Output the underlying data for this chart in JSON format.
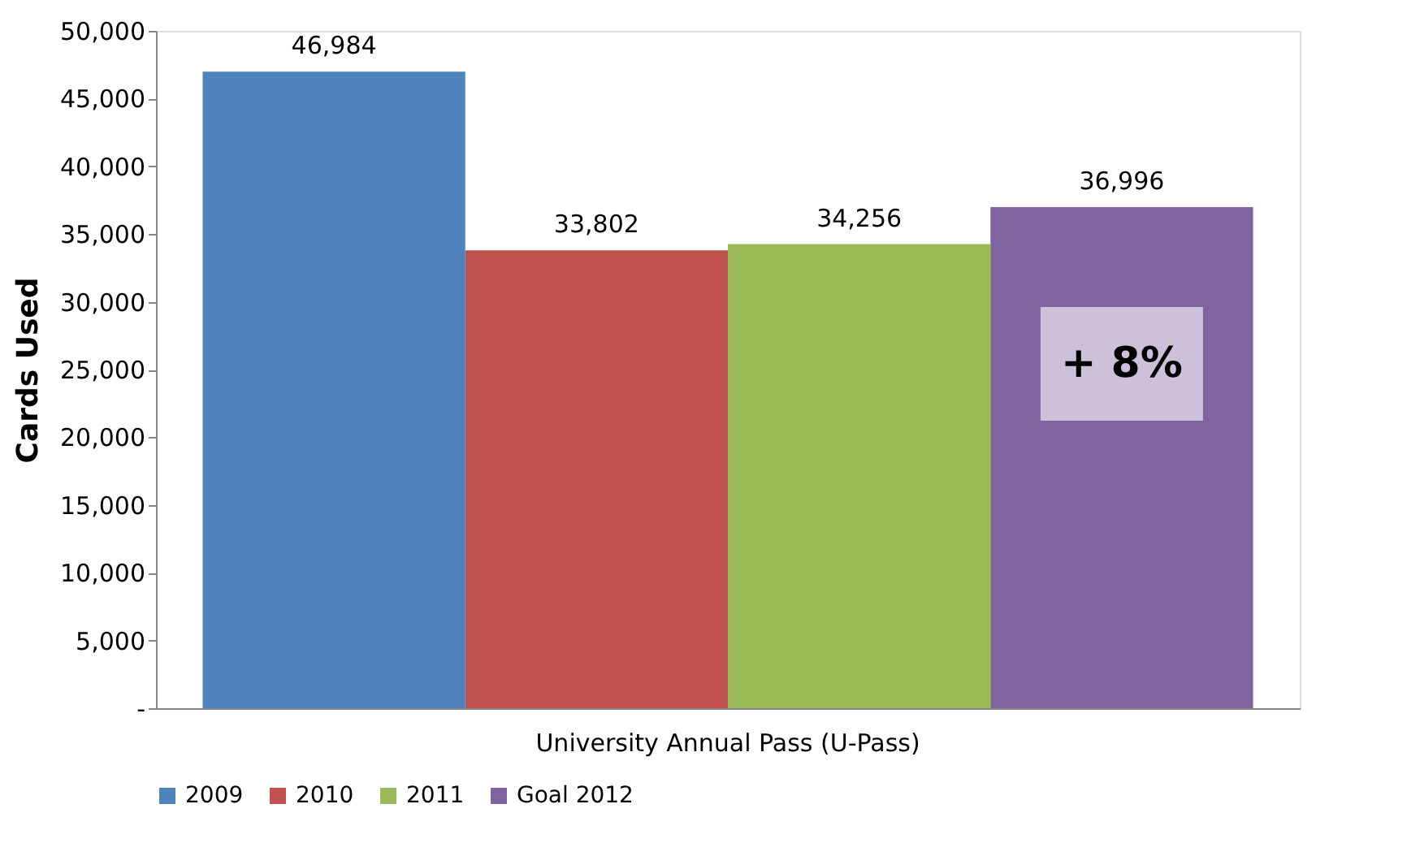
{
  "chart_data": {
    "type": "bar",
    "categories": [
      "University Annual Pass (U-Pass)"
    ],
    "ylabel": "Cards Used",
    "series": [
      {
        "name": "2009",
        "color": "#4f81bd",
        "values": [
          46984
        ],
        "value_labels": [
          "46,984"
        ]
      },
      {
        "name": "2010",
        "color": "#c0504d",
        "values": [
          33802
        ],
        "value_labels": [
          "33,802"
        ]
      },
      {
        "name": "2011",
        "color": "#9bbb59",
        "values": [
          34256
        ],
        "value_labels": [
          "34,256"
        ]
      },
      {
        "name": "Goal 2012",
        "color": "#8064a2",
        "values": [
          36996
        ],
        "value_labels": [
          "36,996"
        ]
      }
    ],
    "ylim": [
      0,
      50000
    ],
    "yticks": [
      {
        "value": 0,
        "label": "-"
      },
      {
        "value": 5000,
        "label": "5,000"
      },
      {
        "value": 10000,
        "label": "10,000"
      },
      {
        "value": 15000,
        "label": "15,000"
      },
      {
        "value": 20000,
        "label": "20,000"
      },
      {
        "value": 25000,
        "label": "25,000"
      },
      {
        "value": 30000,
        "label": "30,000"
      },
      {
        "value": 35000,
        "label": "35,000"
      },
      {
        "value": 40000,
        "label": "40,000"
      },
      {
        "value": 45000,
        "label": "45,000"
      },
      {
        "value": 50000,
        "label": "50,000"
      }
    ],
    "annotations": [
      "+ 8%"
    ],
    "legend": "bottom",
    "grid": false
  }
}
